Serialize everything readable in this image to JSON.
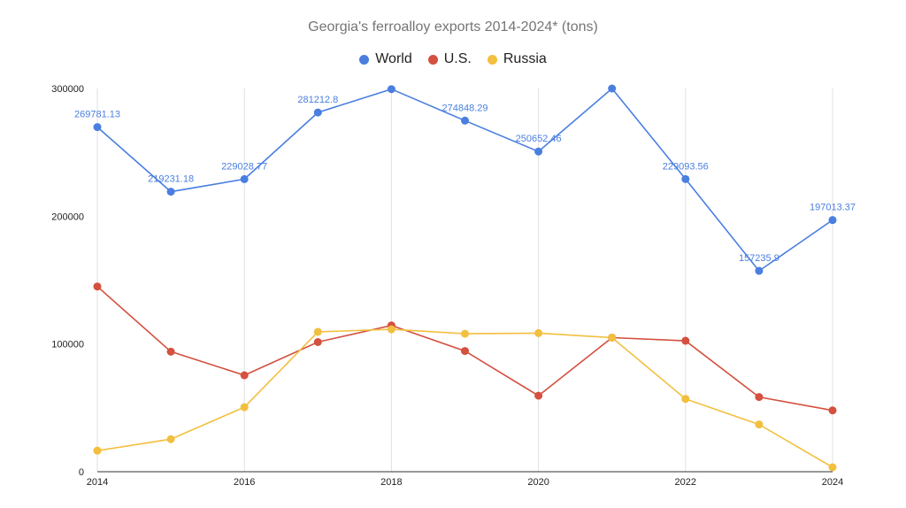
{
  "chart_data": {
    "type": "line",
    "title": "Georgia's ferroalloy exports 2014-2024* (tons)",
    "xlabel": "",
    "ylabel": "",
    "x": [
      2014,
      2015,
      2016,
      2017,
      2018,
      2019,
      2020,
      2021,
      2022,
      2023,
      2024
    ],
    "x_tick_labels": [
      "2014",
      "2016",
      "2018",
      "2020",
      "2022",
      "2024"
    ],
    "y_tick_labels": [
      "0",
      "100000",
      "200000",
      "300000"
    ],
    "xlim": [
      2014,
      2024
    ],
    "ylim": [
      0,
      300000
    ],
    "grid": "vertical",
    "legend_position": "top",
    "series": [
      {
        "name": "World",
        "color": "#4a7fe0",
        "values": [
          269781.13,
          219231.18,
          229028.77,
          281212.8,
          299500,
          274848.29,
          250652.46,
          300000,
          229093.56,
          157235.9,
          197013.37
        ],
        "data_labels": [
          "269781.13",
          "219231.18",
          "229028.77",
          "281212.8",
          "",
          "274848.29",
          "250652.46",
          "",
          "229093.56",
          "157235.9",
          "197013.37"
        ]
      },
      {
        "name": "U.S.",
        "color": "#d4503f",
        "values": [
          145000,
          94000,
          75500,
          101500,
          114500,
          94500,
          59500,
          105000,
          102500,
          58500,
          48000
        ]
      },
      {
        "name": "Russia",
        "color": "#f2bf3e",
        "values": [
          16500,
          25500,
          50500,
          109500,
          111500,
          108000,
          108500,
          105000,
          57000,
          37000,
          3500
        ]
      }
    ]
  }
}
